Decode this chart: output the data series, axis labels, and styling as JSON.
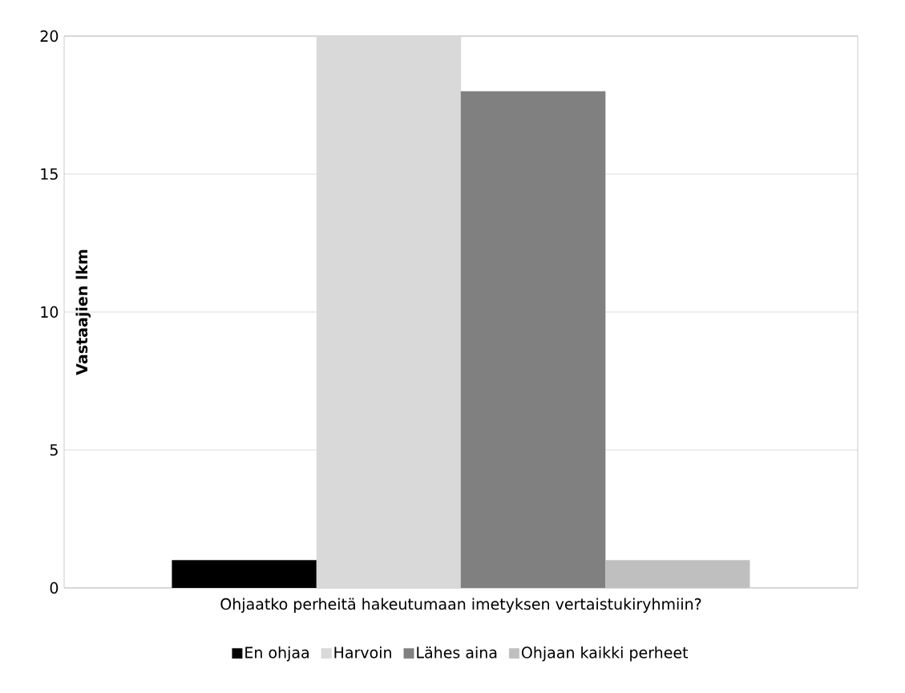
{
  "chart_data": {
    "type": "bar",
    "categories": [
      "Ohjaatko perheitä hakeutumaan imetyksen vertaistukiryhmiin?"
    ],
    "ylabel": "Vastaajien lkm",
    "series": [
      {
        "name": "En ohjaa",
        "color": "#000000",
        "values": [
          1
        ]
      },
      {
        "name": "Harvoin",
        "color": "#d9d9d9",
        "values": [
          20
        ]
      },
      {
        "name": "Lähes aina",
        "color": "#808080",
        "values": [
          18
        ]
      },
      {
        "name": "Ohjaan kaikki perheet",
        "color": "#bfbfbf",
        "values": [
          1
        ]
      }
    ],
    "ylim": [
      0,
      20
    ],
    "yticks": [
      0,
      5,
      10,
      15,
      20
    ],
    "grid": "y",
    "legend": "bottom"
  }
}
